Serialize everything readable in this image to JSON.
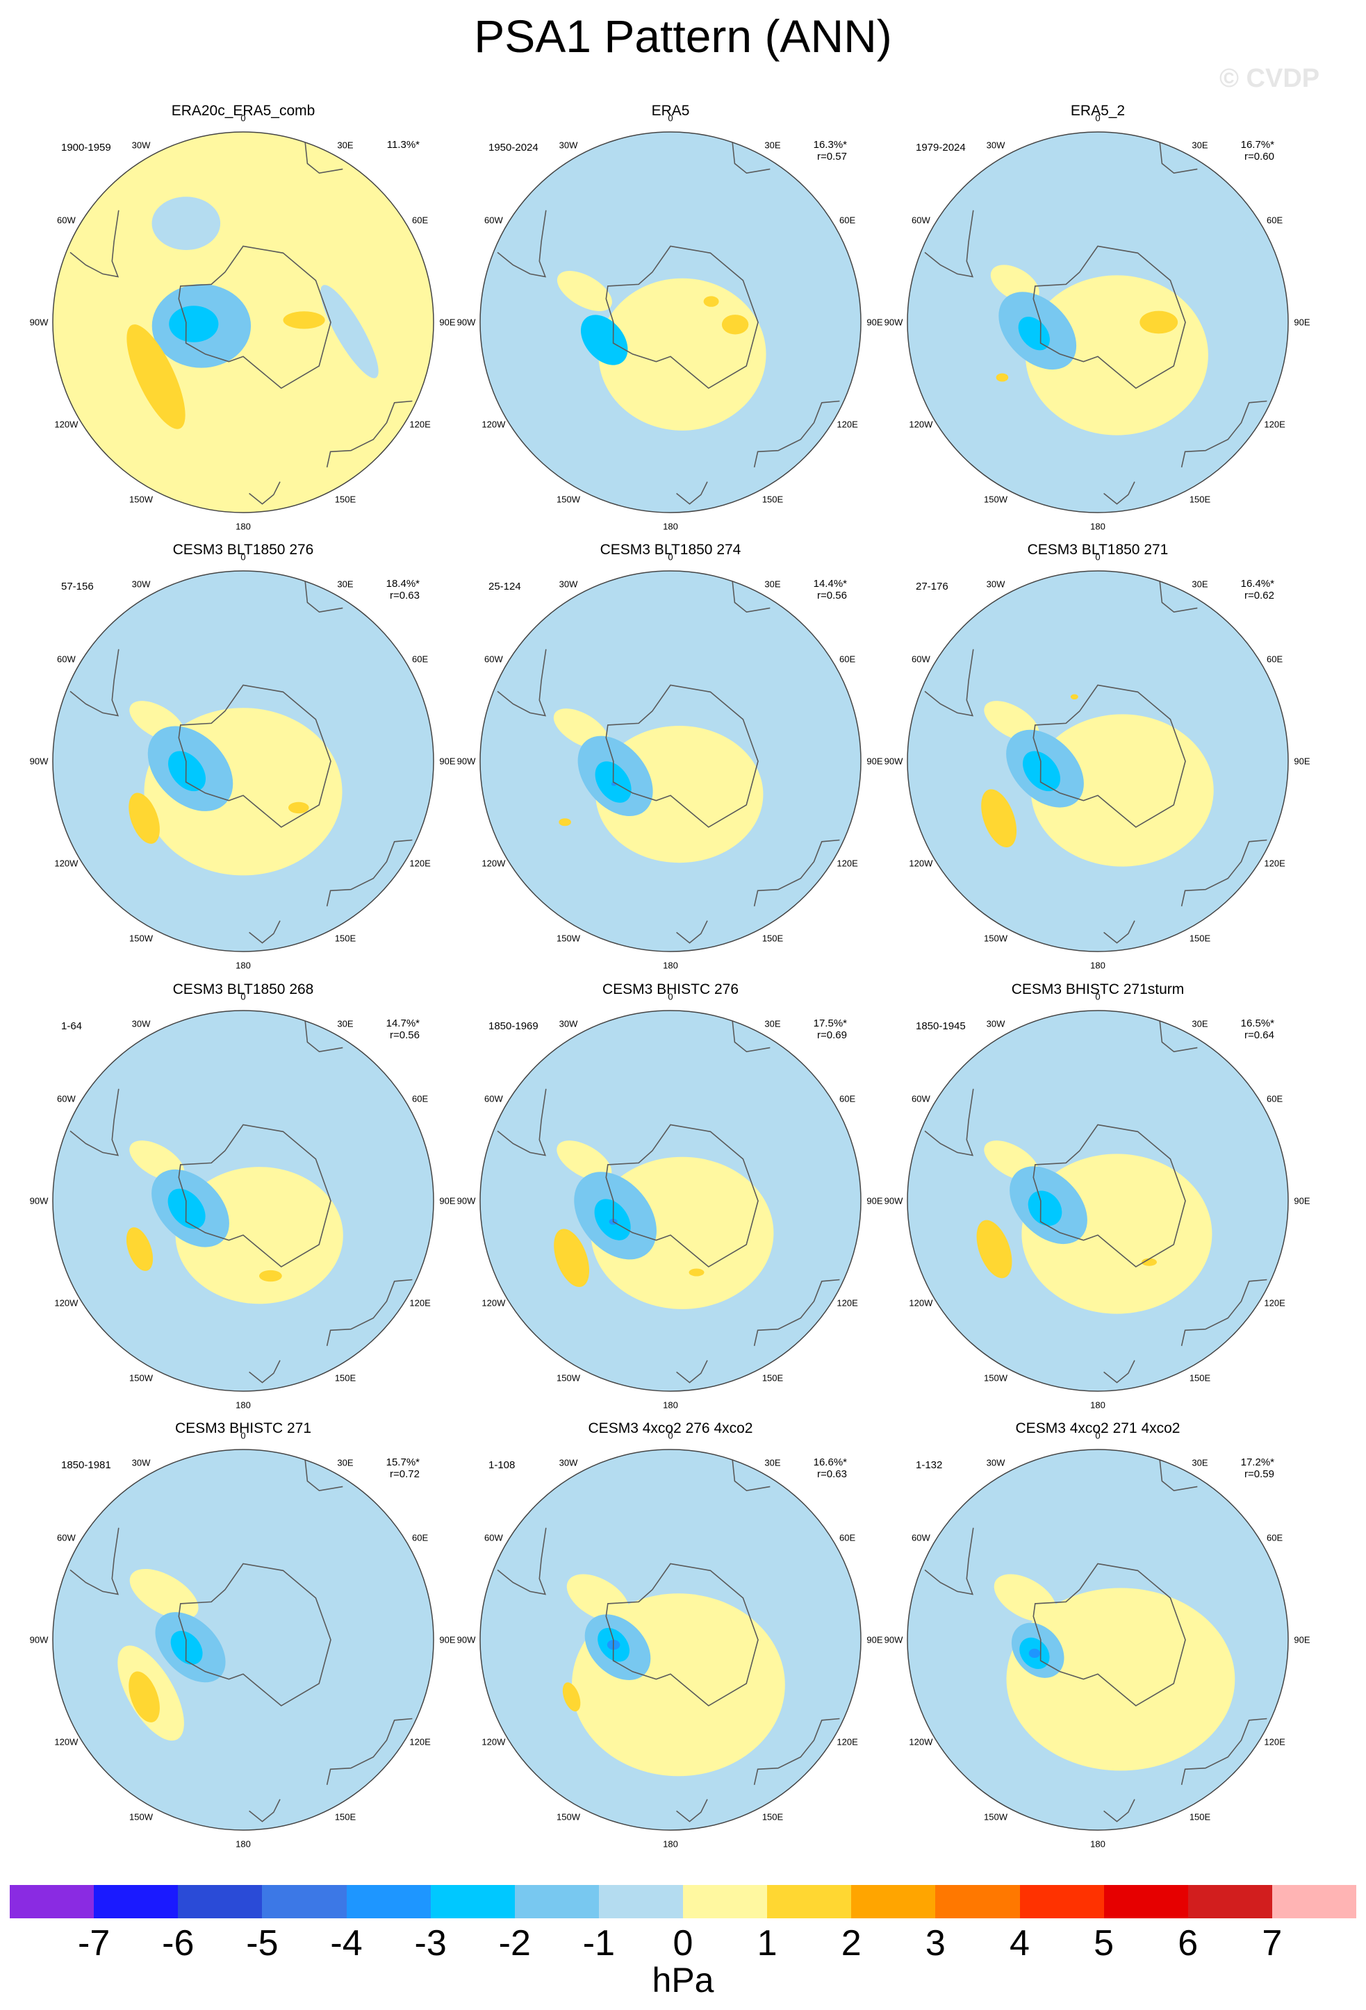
{
  "title": "PSA1 Pattern (ANN)",
  "watermark": "© CVDP",
  "colors": {
    "land_outline": "#5a5a5a",
    "circle_outline": "#444444"
  },
  "lon_labels": [
    "0",
    "30E",
    "60E",
    "90E",
    "120E",
    "150E",
    "180",
    "150W",
    "120W",
    "90W",
    "60W",
    "30W"
  ],
  "chart_data": {
    "type": "heatmap",
    "projection": "south-polar-stereographic",
    "units": "hPa",
    "colorbar": {
      "ticks": [
        -7,
        -6,
        -5,
        -4,
        -3,
        -2,
        -1,
        0,
        1,
        2,
        3,
        4,
        5,
        6,
        7
      ],
      "colors": [
        "#8a2be2",
        "#1a1aff",
        "#2a4bd7",
        "#3c78e6",
        "#1e96ff",
        "#00c8ff",
        "#78c8f0",
        "#b4dcf0",
        "#fff8a0",
        "#ffd732",
        "#ffa500",
        "#ff7800",
        "#ff3200",
        "#e60000",
        "#d21e1e",
        "#ffb4b4"
      ]
    },
    "panels": [
      {
        "title": "ERA20c_ERA5_comb",
        "years": "1900-1959",
        "pct": "11.3%*",
        "r": "",
        "base": 1,
        "regions": [
          {
            "level": 0,
            "lon": 330,
            "colat": 30,
            "rx": 9,
            "ry": 7,
            "rot": 0
          },
          {
            "level": 0,
            "lon": 95,
            "colat": 28,
            "rx": 14,
            "ry": 3.5,
            "rot": 60
          },
          {
            "level": -1,
            "lon": 265,
            "colat": 11,
            "rx": 13,
            "ry": 11,
            "rot": 0
          },
          {
            "level": -2,
            "lon": 268,
            "colat": 13,
            "rx": 6.5,
            "ry": 4.8,
            "rot": 0
          },
          {
            "level": 2,
            "lon": 238,
            "colat": 27,
            "rx": 15,
            "ry": 4.8,
            "rot": 65
          },
          {
            "level": 2,
            "lon": 88,
            "colat": 16,
            "rx": 5.5,
            "ry": 2.3,
            "rot": 0
          }
        ]
      },
      {
        "title": "ERA5",
        "years": "1950-2024",
        "pct": "16.3%*",
        "r": "r=0.57",
        "base": 0,
        "regions": [
          {
            "level": 1,
            "lon": 160,
            "colat": 9,
            "rx": 22,
            "ry": 20,
            "rot": 0
          },
          {
            "level": 1,
            "lon": 290,
            "colat": 24,
            "rx": 8,
            "ry": 4,
            "rot": 30
          },
          {
            "level": -2,
            "lon": 255,
            "colat": 18,
            "rx": 7.5,
            "ry": 5,
            "rot": 50
          },
          {
            "level": 2,
            "lon": 92,
            "colat": 17,
            "rx": 3.5,
            "ry": 2.6,
            "rot": 0
          },
          {
            "level": 2,
            "lon": 63,
            "colat": 12,
            "rx": 2,
            "ry": 1.4,
            "rot": 0
          }
        ]
      },
      {
        "title": "ERA5_2",
        "years": "1979-2024",
        "pct": "16.7%*",
        "r": "r=0.60",
        "base": 0,
        "regions": [
          {
            "level": 1,
            "lon": 150,
            "colat": 10,
            "rx": 24,
            "ry": 21,
            "rot": 0
          },
          {
            "level": 1,
            "lon": 295,
            "colat": 24,
            "rx": 7,
            "ry": 4,
            "rot": 30
          },
          {
            "level": -1,
            "lon": 262,
            "colat": 16,
            "rx": 12,
            "ry": 8,
            "rot": 45
          },
          {
            "level": -2,
            "lon": 260,
            "colat": 17,
            "rx": 5,
            "ry": 3.4,
            "rot": 50
          },
          {
            "level": 2,
            "lon": 90,
            "colat": 16,
            "rx": 5,
            "ry": 3,
            "rot": 0
          },
          {
            "level": 2,
            "lon": 240,
            "colat": 29,
            "rx": 1.6,
            "ry": 1.1,
            "rot": 0
          }
        ]
      },
      {
        "title": "CESM3 BLT1850 276",
        "years": "57-156",
        "pct": "18.4%*",
        "r": "r=0.63",
        "base": 0,
        "regions": [
          {
            "level": 1,
            "lon": 180,
            "colat": 8,
            "rx": 26,
            "ry": 22,
            "rot": 0
          },
          {
            "level": 1,
            "lon": 295,
            "colat": 25,
            "rx": 8,
            "ry": 4,
            "rot": 30
          },
          {
            "level": -1,
            "lon": 262,
            "colat": 14,
            "rx": 13,
            "ry": 9,
            "rot": 45
          },
          {
            "level": -2,
            "lon": 260,
            "colat": 15,
            "rx": 6,
            "ry": 4,
            "rot": 50
          },
          {
            "level": 2,
            "lon": 240,
            "colat": 30,
            "rx": 7,
            "ry": 3.5,
            "rot": 70
          },
          {
            "level": 2,
            "lon": 130,
            "colat": 19,
            "rx": 2.7,
            "ry": 1.5,
            "rot": 0
          }
        ]
      },
      {
        "title": "CESM3 BLT1850 274",
        "years": "25-124",
        "pct": "14.4%*",
        "r": "r=0.56",
        "base": 0,
        "regions": [
          {
            "level": 1,
            "lon": 165,
            "colat": 9,
            "rx": 22,
            "ry": 18,
            "rot": 0
          },
          {
            "level": 1,
            "lon": 290,
            "colat": 25,
            "rx": 8,
            "ry": 4,
            "rot": 30
          },
          {
            "level": -1,
            "lon": 255,
            "colat": 15,
            "rx": 12,
            "ry": 8,
            "rot": 50
          },
          {
            "level": -2,
            "lon": 250,
            "colat": 16,
            "rx": 6,
            "ry": 4,
            "rot": 55
          },
          {
            "level": -3,
            "lon": 248,
            "colat": 16,
            "rx": 0.7,
            "ry": 0.5,
            "rot": 0
          },
          {
            "level": 2,
            "lon": 240,
            "colat": 32,
            "rx": 1.6,
            "ry": 1,
            "rot": 0
          }
        ]
      },
      {
        "title": "CESM3 BLT1850 271",
        "years": "27-176",
        "pct": "16.4%*",
        "r": "r=0.62",
        "base": 0,
        "regions": [
          {
            "level": 1,
            "lon": 140,
            "colat": 10,
            "rx": 24,
            "ry": 20,
            "rot": 0
          },
          {
            "level": 1,
            "lon": 295,
            "colat": 25,
            "rx": 8,
            "ry": 4,
            "rot": 30
          },
          {
            "level": -1,
            "lon": 262,
            "colat": 14,
            "rx": 12,
            "ry": 8,
            "rot": 45
          },
          {
            "level": -2,
            "lon": 260,
            "colat": 15,
            "rx": 6,
            "ry": 4,
            "rot": 50
          },
          {
            "level": 2,
            "lon": 240,
            "colat": 30,
            "rx": 8,
            "ry": 4,
            "rot": 70
          },
          {
            "level": 2,
            "lon": 340,
            "colat": 18,
            "rx": 1,
            "ry": 0.7,
            "rot": 0
          }
        ]
      },
      {
        "title": "CESM3 BLT1850 268",
        "years": "1-64",
        "pct": "14.7%*",
        "r": "r=0.56",
        "base": 0,
        "regions": [
          {
            "level": 1,
            "lon": 155,
            "colat": 10,
            "rx": 22,
            "ry": 18,
            "rot": 0
          },
          {
            "level": 1,
            "lon": 295,
            "colat": 25,
            "rx": 8,
            "ry": 4,
            "rot": 30
          },
          {
            "level": -1,
            "lon": 262,
            "colat": 14,
            "rx": 12,
            "ry": 8,
            "rot": 45
          },
          {
            "level": -2,
            "lon": 262,
            "colat": 15,
            "rx": 6,
            "ry": 4,
            "rot": 50
          },
          {
            "level": 2,
            "lon": 245,
            "colat": 30,
            "rx": 6,
            "ry": 3,
            "rot": 70
          },
          {
            "level": 2,
            "lon": 160,
            "colat": 21,
            "rx": 3,
            "ry": 1.5,
            "rot": 0
          }
        ]
      },
      {
        "title": "CESM3 BHISTC 276",
        "years": "1850-1969",
        "pct": "17.5%*",
        "r": "r=0.69",
        "base": 0,
        "regions": [
          {
            "level": 1,
            "lon": 160,
            "colat": 9,
            "rx": 24,
            "ry": 20,
            "rot": 0
          },
          {
            "level": 1,
            "lon": 295,
            "colat": 25,
            "rx": 8,
            "ry": 4,
            "rot": 30
          },
          {
            "level": -1,
            "lon": 255,
            "colat": 15,
            "rx": 13,
            "ry": 9,
            "rot": 50
          },
          {
            "level": -2,
            "lon": 252,
            "colat": 16,
            "rx": 6,
            "ry": 4,
            "rot": 55
          },
          {
            "level": -3,
            "lon": 250,
            "colat": 16,
            "rx": 1.1,
            "ry": 0.8,
            "rot": 0
          },
          {
            "level": 2,
            "lon": 240,
            "colat": 30,
            "rx": 8,
            "ry": 4,
            "rot": 70
          },
          {
            "level": 2,
            "lon": 160,
            "colat": 20,
            "rx": 2,
            "ry": 1,
            "rot": 0
          }
        ]
      },
      {
        "title": "CESM3 BHISTC 271sturm",
        "years": "1850-1945",
        "pct": "16.5%*",
        "r": "r=0.64",
        "base": 0,
        "regions": [
          {
            "level": 1,
            "lon": 150,
            "colat": 10,
            "rx": 25,
            "ry": 21,
            "rot": 0
          },
          {
            "level": 1,
            "lon": 295,
            "colat": 25,
            "rx": 8,
            "ry": 4,
            "rot": 30
          },
          {
            "level": -1,
            "lon": 265,
            "colat": 13,
            "rx": 12,
            "ry": 8,
            "rot": 45
          },
          {
            "level": -2,
            "lon": 262,
            "colat": 14,
            "rx": 5,
            "ry": 4,
            "rot": 50
          },
          {
            "level": 2,
            "lon": 245,
            "colat": 30,
            "rx": 8,
            "ry": 4,
            "rot": 70
          },
          {
            "level": 2,
            "lon": 140,
            "colat": 21,
            "rx": 2,
            "ry": 1,
            "rot": 0
          }
        ]
      },
      {
        "title": "CESM3 BHISTC 271",
        "years": "1850-1981",
        "pct": "15.7%*",
        "r": "r=0.72",
        "base": 0,
        "regions": [
          {
            "level": 1,
            "lon": 300,
            "colat": 24,
            "rx": 10,
            "ry": 5,
            "rot": 30
          },
          {
            "level": 1,
            "lon": 240,
            "colat": 28,
            "rx": 14,
            "ry": 6,
            "rot": 60
          },
          {
            "level": -1,
            "lon": 262,
            "colat": 14,
            "rx": 11,
            "ry": 7,
            "rot": 45
          },
          {
            "level": -2,
            "lon": 262,
            "colat": 15,
            "rx": 5,
            "ry": 3.5,
            "rot": 50
          },
          {
            "level": 2,
            "lon": 240,
            "colat": 30,
            "rx": 7,
            "ry": 3.5,
            "rot": 70
          }
        ]
      },
      {
        "title": "CESM3 4xco2 276 4xco2",
        "years": "1-108",
        "pct": "16.6%*",
        "r": "r=0.63",
        "base": 0,
        "regions": [
          {
            "level": 1,
            "lon": 170,
            "colat": 12,
            "rx": 28,
            "ry": 24,
            "rot": 0
          },
          {
            "level": 1,
            "lon": 300,
            "colat": 22,
            "rx": 9,
            "ry": 5,
            "rot": 30
          },
          {
            "level": -1,
            "lon": 262,
            "colat": 14,
            "rx": 10,
            "ry": 7,
            "rot": 45
          },
          {
            "level": -2,
            "lon": 265,
            "colat": 15,
            "rx": 5,
            "ry": 3.5,
            "rot": 50
          },
          {
            "level": -3,
            "lon": 265,
            "colat": 15,
            "rx": 1.7,
            "ry": 1.3,
            "rot": 0
          },
          {
            "level": 2,
            "lon": 240,
            "colat": 30,
            "rx": 4,
            "ry": 2,
            "rot": 70
          }
        ]
      },
      {
        "title": "CESM3 4xco2 271 4xco2",
        "years": "1-132",
        "pct": "17.2%*",
        "r": "r=0.59",
        "base": 0,
        "regions": [
          {
            "level": 1,
            "lon": 150,
            "colat": 12,
            "rx": 30,
            "ry": 24,
            "rot": 0
          },
          {
            "level": 1,
            "lon": 300,
            "colat": 22,
            "rx": 9,
            "ry": 5,
            "rot": 30
          },
          {
            "level": -1,
            "lon": 260,
            "colat": 16,
            "rx": 8,
            "ry": 6,
            "rot": 50
          },
          {
            "level": -2,
            "lon": 258,
            "colat": 17,
            "rx": 4.5,
            "ry": 3.5,
            "rot": 50
          },
          {
            "level": -3,
            "lon": 258,
            "colat": 17,
            "rx": 1.5,
            "ry": 1.2,
            "rot": 0
          }
        ]
      }
    ]
  }
}
